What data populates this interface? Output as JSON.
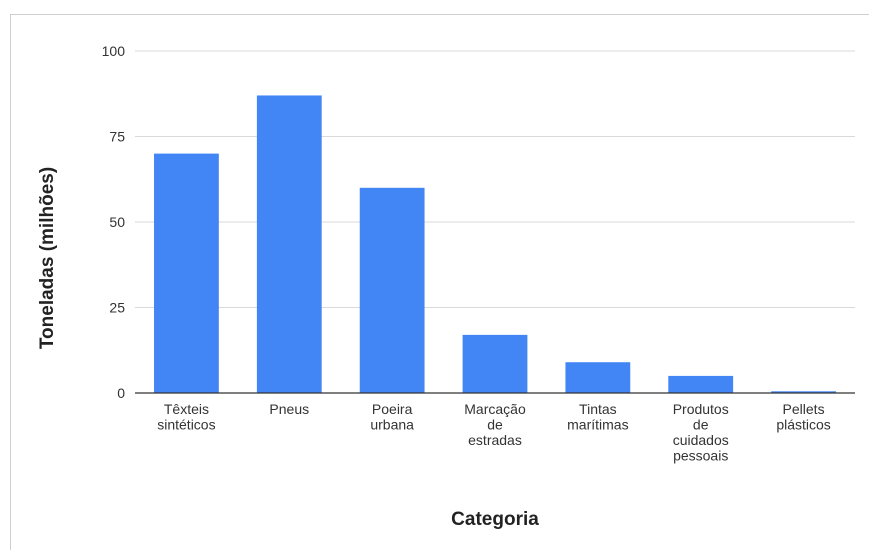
{
  "chart_data": {
    "type": "bar",
    "title": "",
    "xlabel": "Categoria",
    "ylabel": "Toneladas (milhões)",
    "categories": [
      [
        "Têxteis",
        "sintéticos"
      ],
      [
        "Pneus"
      ],
      [
        "Poeira",
        "urbana"
      ],
      [
        "Marcação",
        "de",
        "estradas"
      ],
      [
        "Tintas",
        "marítimas"
      ],
      [
        "Produtos",
        "de",
        "cuidados",
        "pessoais"
      ],
      [
        "Pellets",
        "plásticos"
      ]
    ],
    "values": [
      70,
      87,
      60,
      17,
      9,
      5,
      0.5
    ],
    "ylim": [
      0,
      100
    ],
    "yticks": [
      0,
      25,
      50,
      75,
      100
    ],
    "grid": true,
    "legend": "none",
    "colors": {
      "bar": "#4285f4",
      "grid": "#d9d9d9",
      "axis": "#333333"
    }
  }
}
